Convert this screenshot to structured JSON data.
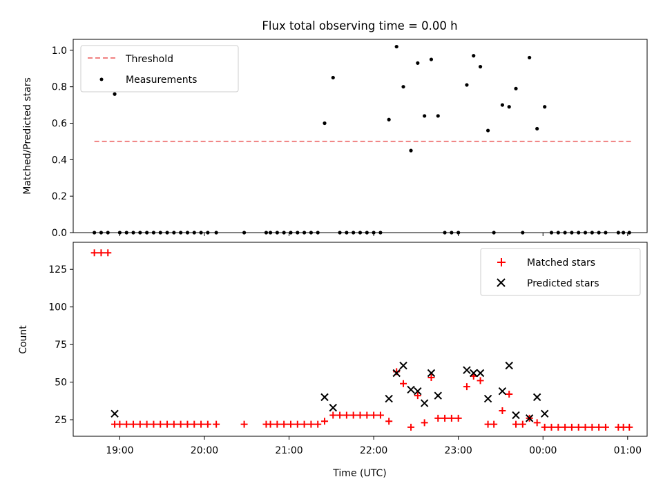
{
  "chart_data": [
    {
      "type": "scatter",
      "title": "Flux total observing time = 0.00 h",
      "xlabel": "",
      "ylabel": "Matched/Predicted stars",
      "ylim": [
        0,
        1.06
      ],
      "yticks": [
        0.0,
        0.2,
        0.4,
        0.6,
        0.8,
        1.0
      ],
      "ytick_labels": [
        "0.0",
        "0.2",
        "0.4",
        "0.6",
        "0.8",
        "1.0"
      ],
      "xlim": [
        18.45,
        25.23
      ],
      "legend_position": "top-left",
      "threshold": {
        "name": "Threshold",
        "x": [
          18.7,
          25.05
        ],
        "y": [
          0.5,
          0.5
        ],
        "color": "#f08080"
      },
      "measurements": {
        "name": "Measurements",
        "color": "#000000",
        "x": [
          18.7,
          18.78,
          18.86,
          18.94,
          19.0,
          19.08,
          19.16,
          19.24,
          19.32,
          19.4,
          19.48,
          19.56,
          19.64,
          19.72,
          19.8,
          19.88,
          19.96,
          20.04,
          20.14,
          20.47,
          20.73,
          20.78,
          20.86,
          20.94,
          21.02,
          21.1,
          21.18,
          21.26,
          21.34,
          21.42,
          21.52,
          21.6,
          21.68,
          21.76,
          21.84,
          21.92,
          22.0,
          22.08,
          22.18,
          22.27,
          22.35,
          22.44,
          22.52,
          22.6,
          22.68,
          22.76,
          22.84,
          22.92,
          23.0,
          23.1,
          23.18,
          23.26,
          23.35,
          23.42,
          23.52,
          23.6,
          23.68,
          23.76,
          23.84,
          23.93,
          24.02,
          24.1,
          24.18,
          24.26,
          24.34,
          24.42,
          24.5,
          24.58,
          24.66,
          24.74,
          24.89,
          24.95,
          25.02
        ],
        "y": [
          0,
          0,
          0,
          0.76,
          0,
          0,
          0,
          0,
          0,
          0,
          0,
          0,
          0,
          0,
          0,
          0,
          0,
          0,
          0,
          0,
          0,
          0,
          0,
          0,
          0,
          0,
          0,
          0,
          0,
          0.6,
          0.85,
          0,
          0,
          0,
          0,
          0,
          0,
          0,
          0.62,
          1.02,
          0.8,
          0.45,
          0.93,
          0.64,
          0.95,
          0.64,
          0,
          0,
          0,
          0.81,
          0.97,
          0.91,
          0.56,
          0,
          0.7,
          0.69,
          0.79,
          0,
          0.96,
          0.57,
          0.69,
          0,
          0,
          0,
          0,
          0,
          0,
          0,
          0,
          0,
          0,
          0,
          0
        ]
      }
    },
    {
      "type": "scatter",
      "title": "",
      "xlabel": "Time (UTC)",
      "ylabel": "Count",
      "ylim": [
        14,
        143
      ],
      "yticks": [
        25,
        50,
        75,
        100,
        125
      ],
      "ytick_labels": [
        "25",
        "50",
        "75",
        "100",
        "125"
      ],
      "xlim": [
        18.45,
        25.23
      ],
      "xticks": [
        19,
        20,
        21,
        22,
        23,
        24,
        25
      ],
      "xtick_labels": [
        "19:00",
        "20:00",
        "21:00",
        "22:00",
        "23:00",
        "00:00",
        "01:00"
      ],
      "legend_position": "top-right",
      "matched": {
        "name": "Matched stars",
        "color": "#ff0000",
        "x": [
          18.7,
          18.78,
          18.86,
          18.94,
          19.0,
          19.08,
          19.16,
          19.24,
          19.32,
          19.4,
          19.48,
          19.56,
          19.64,
          19.72,
          19.8,
          19.88,
          19.96,
          20.04,
          20.14,
          20.47,
          20.73,
          20.78,
          20.86,
          20.94,
          21.02,
          21.1,
          21.18,
          21.26,
          21.34,
          21.42,
          21.52,
          21.6,
          21.68,
          21.76,
          21.84,
          21.92,
          22.0,
          22.08,
          22.18,
          22.27,
          22.35,
          22.44,
          22.52,
          22.6,
          22.68,
          22.76,
          22.84,
          22.92,
          23.0,
          23.1,
          23.18,
          23.26,
          23.35,
          23.42,
          23.52,
          23.6,
          23.68,
          23.76,
          23.84,
          23.93,
          24.02,
          24.1,
          24.18,
          24.26,
          24.34,
          24.42,
          24.5,
          24.58,
          24.66,
          24.74,
          24.89,
          24.95,
          25.02
        ],
        "y": [
          136,
          136,
          136,
          22,
          22,
          22,
          22,
          22,
          22,
          22,
          22,
          22,
          22,
          22,
          22,
          22,
          22,
          22,
          22,
          22,
          22,
          22,
          22,
          22,
          22,
          22,
          22,
          22,
          22,
          24,
          28,
          28,
          28,
          28,
          28,
          28,
          28,
          28,
          24,
          57,
          49,
          20,
          41,
          23,
          53,
          26,
          26,
          26,
          26,
          47,
          54,
          51,
          22,
          22,
          31,
          42,
          22,
          22,
          26,
          23,
          20,
          20,
          20,
          20,
          20,
          20,
          20,
          20,
          20,
          20,
          20,
          20,
          20
        ]
      },
      "predicted": {
        "name": "Predicted stars",
        "color": "#000000",
        "x": [
          18.94,
          21.42,
          21.52,
          22.18,
          22.27,
          22.35,
          22.44,
          22.52,
          22.6,
          22.68,
          22.76,
          23.1,
          23.18,
          23.26,
          23.35,
          23.52,
          23.6,
          23.68,
          23.84,
          23.93,
          24.02
        ],
        "y": [
          29,
          40,
          33,
          39,
          56,
          61,
          45,
          44,
          36,
          56,
          41,
          58,
          56,
          56,
          39,
          44,
          61,
          28,
          26,
          40,
          29
        ]
      }
    }
  ]
}
